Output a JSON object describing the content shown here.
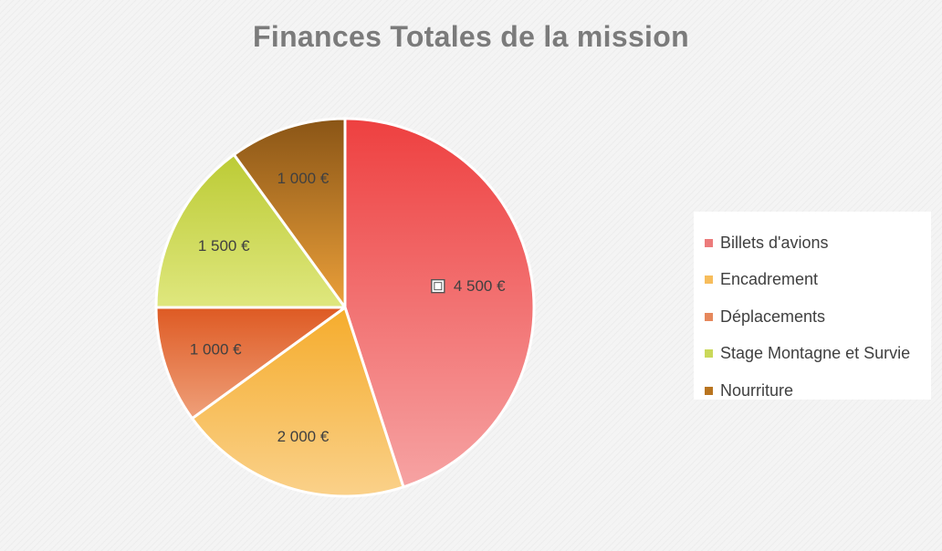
{
  "chart_data": {
    "type": "pie",
    "title": "Finances Totales de la mission",
    "legend_position": "right",
    "slices": [
      {
        "name": "Billets d'avions",
        "value": 4500,
        "label": "4 500 €",
        "color_top": "#ee4040",
        "color_bottom": "#f6a3a3",
        "legend_color": "#ec7b7b"
      },
      {
        "name": "Encadrement",
        "value": 2000,
        "label": "2 000 €",
        "color_top": "#f5ac2c",
        "color_bottom": "#fad18a",
        "legend_color": "#f7bd5c"
      },
      {
        "name": "Déplacements",
        "value": 1000,
        "label": "1 000 €",
        "color_top": "#de5a23",
        "color_bottom": "#efa07a",
        "legend_color": "#e6885c"
      },
      {
        "name": "Stage Montagne et Survie",
        "value": 1500,
        "label": "1 500 €",
        "color_top": "#bccb35",
        "color_bottom": "#dfe77e",
        "legend_color": "#cad85a"
      },
      {
        "name": "Nourriture",
        "value": 1000,
        "label": "1 000 €",
        "color_top": "#8a5516",
        "color_bottom": "#eba03a",
        "legend_color": "#b8741f"
      }
    ]
  }
}
